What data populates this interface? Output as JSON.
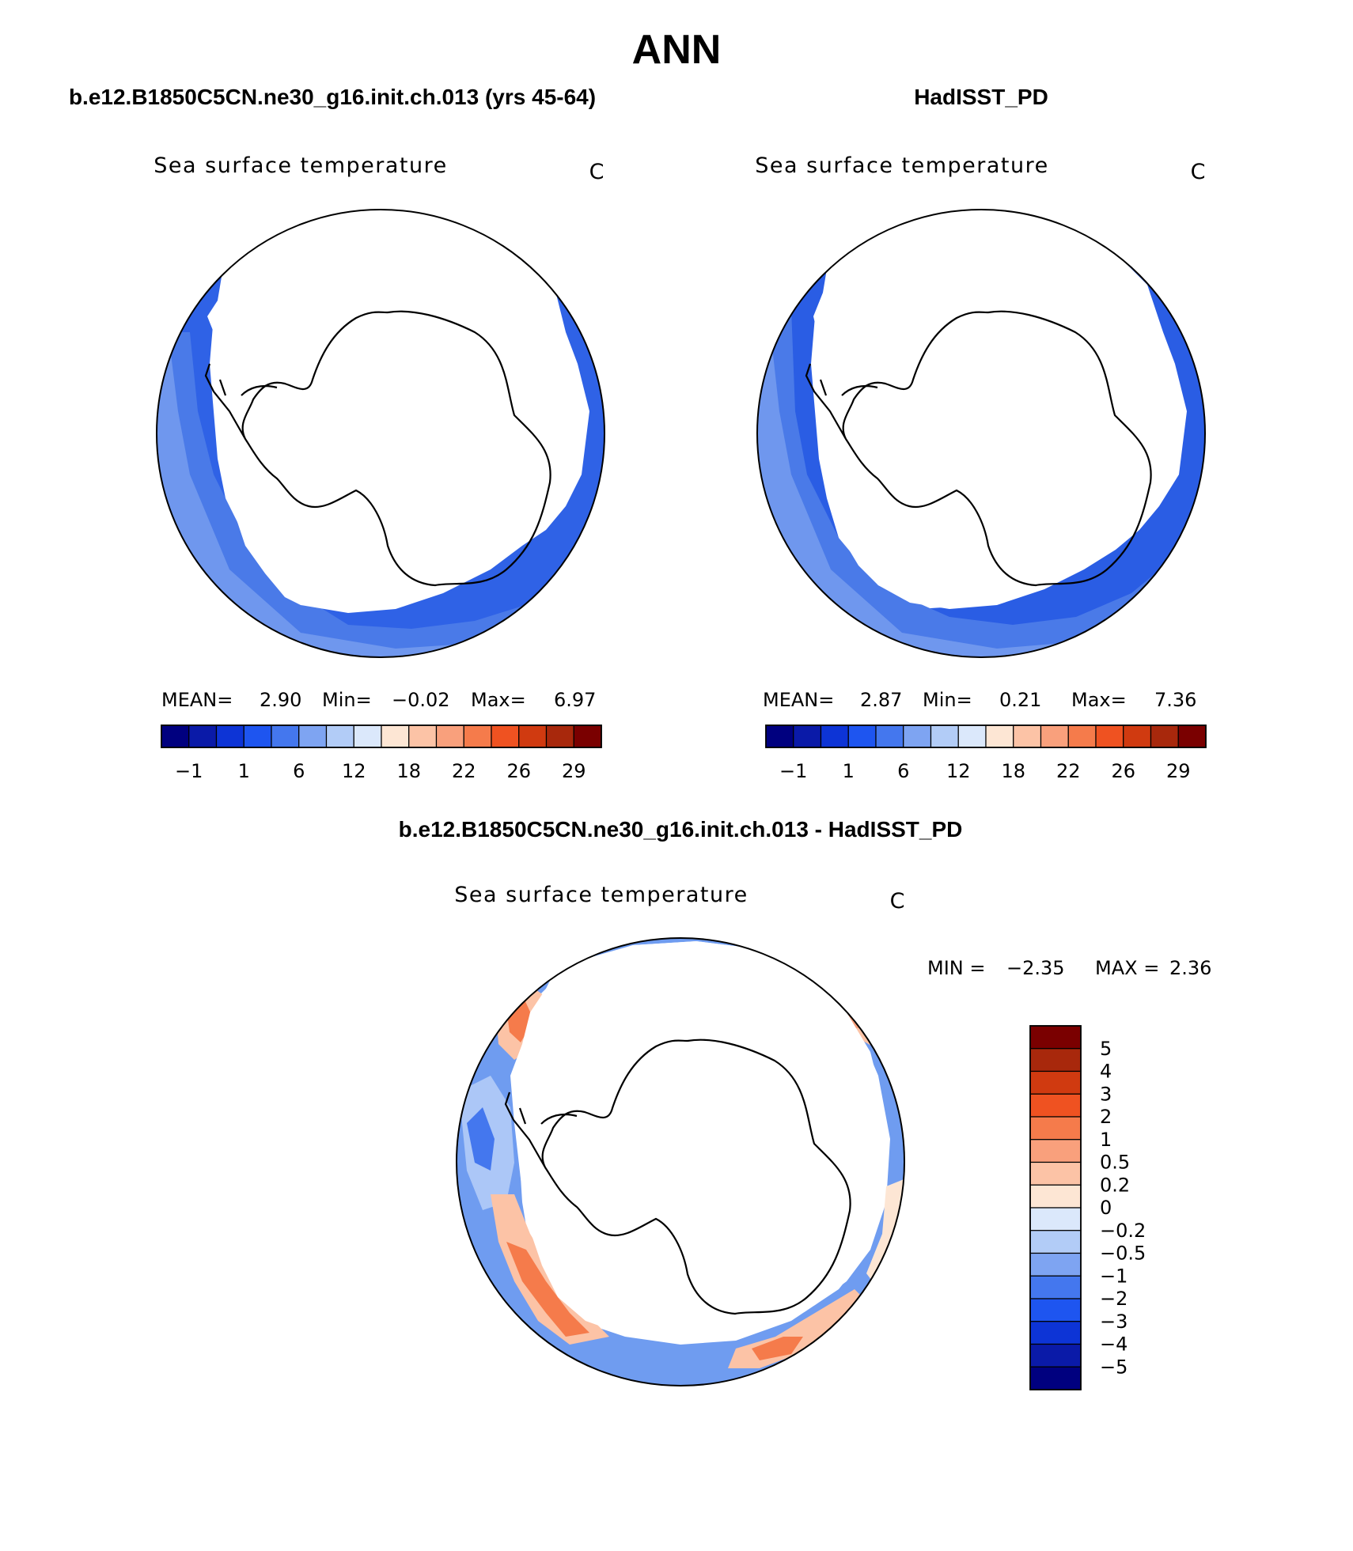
{
  "figure": {
    "title": "ANN",
    "panels": [
      {
        "id": "model",
        "header": "b.e12.B1850C5CN.ne30_g16.init.ch.013 (yrs 45-64)",
        "variable": "Sea surface temperature",
        "units": "C",
        "stats": {
          "mean_label": "MEAN=",
          "mean": "2.90",
          "min_label": "Min=",
          "min": "−0.02",
          "max_label": "Max=",
          "max": "6.97"
        },
        "colorbar_labels": [
          "−1",
          "1",
          "6",
          "12",
          "18",
          "22",
          "26",
          "29"
        ]
      },
      {
        "id": "obs",
        "header": "HadISST_PD",
        "variable": "Sea surface temperature",
        "units": "C",
        "stats": {
          "mean_label": "MEAN=",
          "mean": "2.87",
          "min_label": "Min=",
          "min": "0.21",
          "max_label": "Max=",
          "max": "7.36"
        },
        "colorbar_labels": [
          "−1",
          "1",
          "6",
          "12",
          "18",
          "22",
          "26",
          "29"
        ]
      },
      {
        "id": "diff",
        "header": "b.e12.B1850C5CN.ne30_g16.init.ch.013 - HadISST_PD",
        "variable": "Sea surface temperature",
        "units": "C",
        "stats": {
          "min_label": "MIN =",
          "min": "−2.35",
          "max_label": "MAX =",
          "max": "2.36"
        },
        "colorbar_labels": [
          "5",
          "4",
          "3",
          "2",
          "1",
          "0.5",
          "0.2",
          "0",
          "−0.2",
          "−0.5",
          "−1",
          "−2",
          "−3",
          "−4",
          "−5"
        ]
      }
    ],
    "colors": {
      "abs_scale": [
        "#00007f",
        "#0a1aa8",
        "#0d34d6",
        "#1e55f0",
        "#4477ee",
        "#7ea4f2",
        "#b2ccf7",
        "#dbe8fb",
        "#fde6d4",
        "#fcc3a6",
        "#f9a07c",
        "#f57b4b",
        "#ef5221",
        "#d03a10",
        "#a8280c",
        "#7a0000"
      ],
      "diff_scale_top_to_bottom": [
        "#7a0000",
        "#a8280c",
        "#d03a10",
        "#ef5221",
        "#f57b4b",
        "#f9a07c",
        "#fcc3a6",
        "#fde6d4",
        "#dbe8fb",
        "#b2ccf7",
        "#7ea4f2",
        "#4477ee",
        "#1e55f0",
        "#0d34d6",
        "#0a1aa8",
        "#00007f"
      ],
      "ocean_model": "#2f62e6",
      "ocean_obs": "#2a5de4",
      "diff_base": "#6f9cf0",
      "land": "#ffffff",
      "outline": "#000000"
    }
  }
}
